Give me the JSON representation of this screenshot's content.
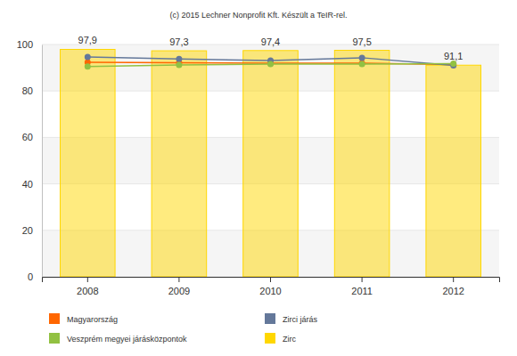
{
  "chart_data": {
    "type": "bar",
    "title": "(c) 2015 Lechner Nonprofit Kft. Készült a TeIR-rel.",
    "categories": [
      "2008",
      "2009",
      "2010",
      "2011",
      "2012"
    ],
    "series": [
      {
        "name": "Magyarország",
        "type": "line",
        "color": "#ff6600",
        "marker": "circle",
        "values": [
          92.3,
          92.1,
          92.0,
          92.0,
          91.4
        ]
      },
      {
        "name": "Zirci járás",
        "type": "line",
        "color": "#64789a",
        "marker": "circle",
        "values": [
          94.6,
          93.8,
          93.1,
          94.3,
          91.0
        ]
      },
      {
        "name": "Veszprém megyei járásközpontok",
        "type": "line",
        "color": "#92c142",
        "marker": "circle",
        "values": [
          90.5,
          91.2,
          91.6,
          91.6,
          91.8
        ]
      },
      {
        "name": "Zirc",
        "type": "bar",
        "color": "#ffd700",
        "values": [
          97.9,
          97.3,
          97.4,
          97.5,
          91.1
        ],
        "value_labels": [
          "97,9",
          "97,3",
          "97,4",
          "97,5",
          "91,1"
        ]
      }
    ],
    "ylim": [
      0,
      100
    ],
    "yticks": [
      0,
      20,
      40,
      60,
      80,
      100
    ],
    "grid": true,
    "data_labels": true,
    "legend": "bottom"
  }
}
